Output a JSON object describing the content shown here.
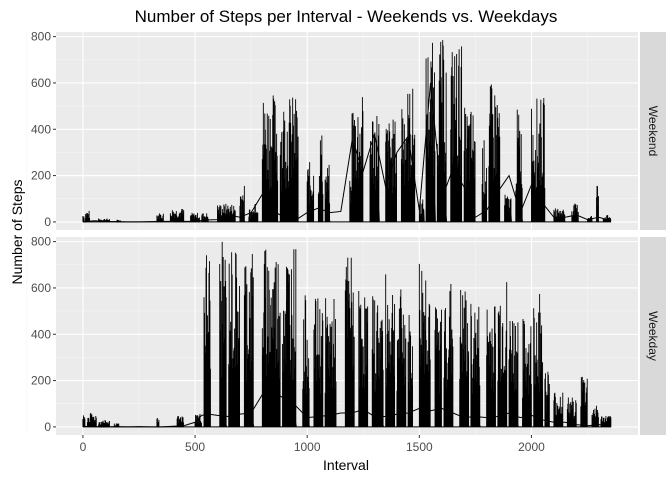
{
  "chart_data": {
    "type": "line",
    "title": "Number of Steps per Interval - Weekends vs. Weekdays",
    "xlabel": "Interval",
    "ylabel": "Number of Steps",
    "xlim": [
      -120,
      2475
    ],
    "ylim": [
      -35,
      820
    ],
    "x_ticks": [
      0,
      500,
      1000,
      1500,
      2000
    ],
    "x_tick_labels": [
      "0",
      "500",
      "1000",
      "1500",
      "2000"
    ],
    "y_ticks": [
      0,
      200,
      400,
      600,
      800
    ],
    "y_tick_labels": [
      "0",
      "200",
      "400",
      "600",
      "800"
    ],
    "grid": true,
    "legend": "none",
    "line_color": "#000000",
    "panel_background": "#ebebeb",
    "strip_background": "#d9d9d9",
    "panels": [
      {
        "strip_label": "Weekend",
        "series": [
          {
            "x": [
              0,
              50,
              100,
              150,
              200,
              250,
              300,
              350,
              400,
              450,
              500,
              550,
              600,
              650,
              700,
              750,
              800,
              820,
              840,
              860,
              880,
              900,
              920,
              940,
              960,
              1000,
              1050,
              1100,
              1150,
              1200,
              1250,
              1300,
              1350,
              1400,
              1450,
              1500,
              1550,
              1600,
              1650,
              1700,
              1750,
              1800,
              1850,
              1900,
              1950,
              2000,
              2050,
              2100,
              2150,
              2200,
              2250,
              2300,
              2355
            ],
            "values": [
              0,
              5,
              2,
              1,
              0,
              0,
              1,
              2,
              2,
              2,
              3,
              8,
              10,
              30,
              20,
              40,
              120,
              160,
              90,
              40,
              30,
              35,
              40,
              20,
              15,
              40,
              60,
              40,
              45,
              350,
              220,
              380,
              150,
              300,
              370,
              50,
              600,
              100,
              230,
              150,
              20,
              50,
              130,
              200,
              40,
              160,
              80,
              20,
              20,
              30,
              10,
              20,
              5
            ]
          }
        ]
      },
      {
        "strip_label": "Weekday",
        "series": [
          {
            "x": [
              0,
              50,
              100,
              150,
              200,
              250,
              300,
              350,
              400,
              450,
              500,
              530,
              560,
              600,
              650,
              700,
              750,
              800,
              830,
              850,
              870,
              900,
              950,
              1000,
              1050,
              1100,
              1150,
              1200,
              1250,
              1300,
              1350,
              1400,
              1450,
              1500,
              1550,
              1600,
              1650,
              1700,
              1750,
              1800,
              1850,
              1900,
              1950,
              2000,
              2050,
              2100,
              2150,
              2200,
              2250,
              2300,
              2355
            ],
            "values": [
              2,
              1,
              0,
              1,
              0,
              1,
              0,
              0,
              3,
              5,
              20,
              50,
              55,
              50,
              45,
              55,
              60,
              140,
              185,
              160,
              140,
              120,
              90,
              40,
              45,
              50,
              60,
              60,
              75,
              45,
              45,
              55,
              60,
              80,
              70,
              80,
              60,
              40,
              45,
              40,
              45,
              60,
              40,
              50,
              30,
              20,
              20,
              10,
              5,
              10,
              5
            ]
          }
        ]
      }
    ]
  }
}
